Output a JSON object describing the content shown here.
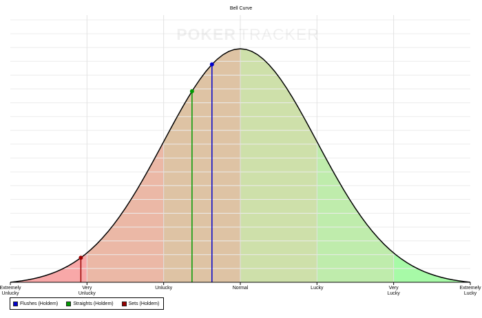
{
  "chart_data": {
    "type": "area",
    "title": "Bell Curve",
    "watermark": {
      "left": "POKER",
      "right": "TRACKER"
    },
    "x_range": [
      -3,
      3
    ],
    "categories": [
      {
        "x": -3,
        "label": [
          "Extremely",
          "Unlucky"
        ]
      },
      {
        "x": -2,
        "label": [
          "Very",
          "Unlucky"
        ]
      },
      {
        "x": -1,
        "label": [
          "Unlucky"
        ]
      },
      {
        "x": 0,
        "label": [
          "Normal"
        ]
      },
      {
        "x": 1,
        "label": [
          "Lucky"
        ]
      },
      {
        "x": 2,
        "label": [
          "Very",
          "Lucky"
        ]
      },
      {
        "x": 3,
        "label": [
          "Extremely",
          "Lucky"
        ]
      }
    ],
    "zones": [
      {
        "from": -3,
        "to": -2,
        "color": "#f8a8a8"
      },
      {
        "from": -2,
        "to": -1,
        "color": "#ebb8a6"
      },
      {
        "from": -1,
        "to": 0,
        "color": "#dec3a4"
      },
      {
        "from": 0,
        "to": 1,
        "color": "#cee0aa"
      },
      {
        "from": 1,
        "to": 2,
        "color": "#bfecac"
      },
      {
        "from": 2,
        "to": 3,
        "color": "#a7faa7"
      }
    ],
    "series": [
      {
        "name": "Flushes (Holdem)",
        "x": -0.37,
        "color": "#0000cc"
      },
      {
        "name": "Straights (Holdem)",
        "x": -0.63,
        "color": "#009900"
      },
      {
        "name": "Sets (Holdem)",
        "x": -2.08,
        "color": "#990000"
      }
    ],
    "grid": true,
    "legend_position": "bottom-left",
    "curve_color": "#000000"
  }
}
